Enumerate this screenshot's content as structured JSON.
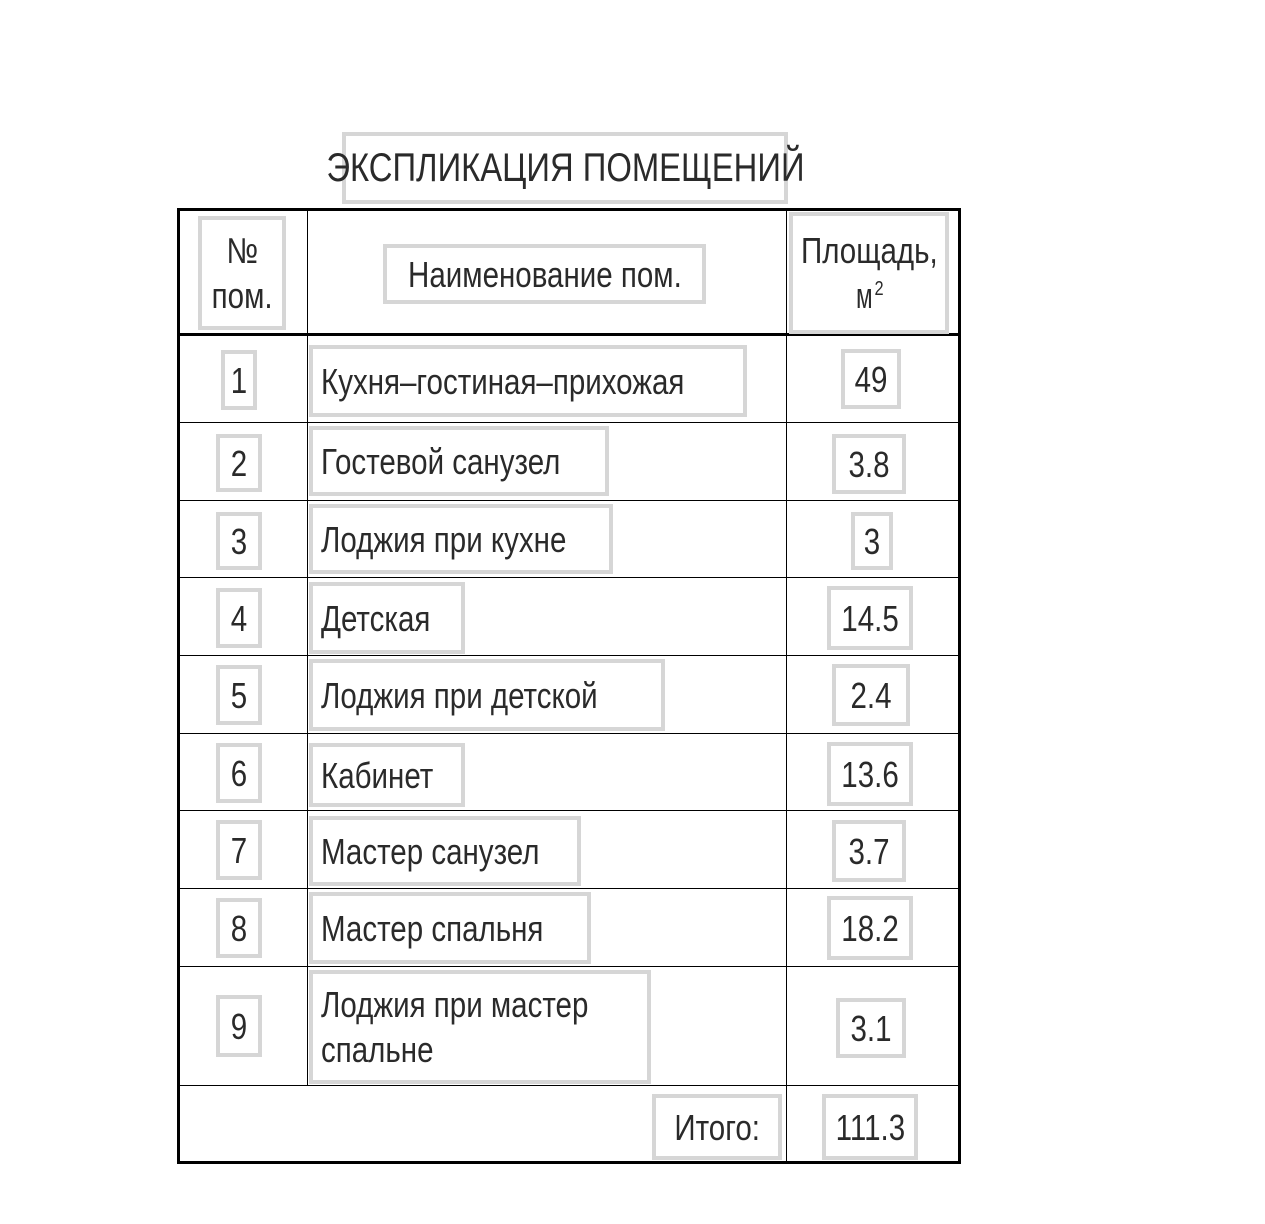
{
  "title": "ЭКСПЛИКАЦИЯ ПОМЕЩЕНИЙ",
  "headers": {
    "number": "№ пом.",
    "number_line1": "№",
    "number_line2": "пом.",
    "name": "Наименование пом.",
    "area_line1": "Площадь,",
    "area_line2": "м",
    "area_sup": "2"
  },
  "rows": [
    {
      "no": "1",
      "name": "Кухня–гостиная–прихожая",
      "area": "49"
    },
    {
      "no": "2",
      "name": "Гостевой санузел",
      "area": "3.8"
    },
    {
      "no": "3",
      "name": "Лоджия при кухне",
      "area": "3"
    },
    {
      "no": "4",
      "name": "Детская",
      "area": "14.5"
    },
    {
      "no": "5",
      "name": "Лоджия при детской",
      "area": "2.4"
    },
    {
      "no": "6",
      "name": "Кабинет",
      "area": "13.6"
    },
    {
      "no": "7",
      "name": "Мастер санузел",
      "area": "3.7"
    },
    {
      "no": "8",
      "name": "Мастер спальня",
      "area": "18.2"
    },
    {
      "no": "9",
      "name_line1": "Лоджия при мастер",
      "name_line2": "спальне",
      "area": "3.1"
    }
  ],
  "total": {
    "label": "Итого:",
    "value": "111.3"
  }
}
